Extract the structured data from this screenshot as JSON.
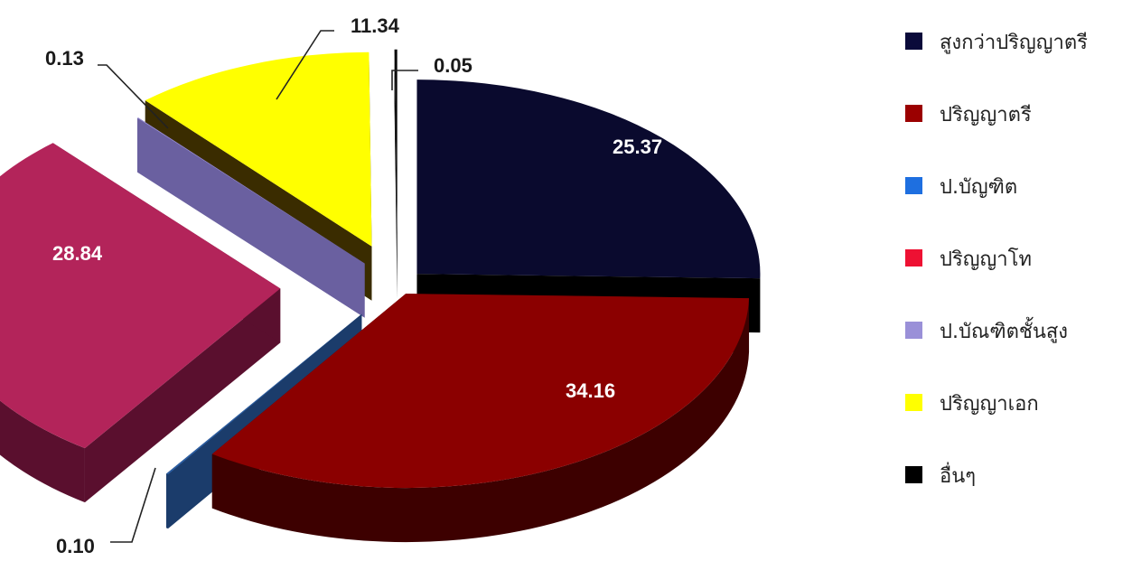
{
  "chart_data": {
    "type": "pie",
    "title": "",
    "legend_position": "right",
    "slices": [
      {
        "name": "สูงกว่าปริญญาตรี",
        "value": 25.37,
        "label": "25.37",
        "color": "#0a0a2e",
        "side": "#000000"
      },
      {
        "name": "ปริญญาตรี",
        "value": 34.16,
        "label": "34.16",
        "color": "#8b0000",
        "side": "#3d0000"
      },
      {
        "name": "ป.บัณฑิต",
        "value": 0.1,
        "label": "0.10",
        "color": "#2d5fa3",
        "side": "#1b3c6b"
      },
      {
        "name": "ปริญญาโท",
        "value": 28.84,
        "label": "28.84",
        "color": "#b3245a",
        "side": "#5a0f2e"
      },
      {
        "name": "ป.บัณฑิตชั้นสูง",
        "value": 0.05,
        "label": "0.05",
        "color": "#9a8fd6",
        "side": "#6a60a0"
      },
      {
        "name": "ปริญญาเอก",
        "value": 11.34,
        "label": "11.34",
        "color": "#ffff00",
        "side": "#3a2c00"
      },
      {
        "name": "อื่นๆ",
        "value": 0.13,
        "label": "0.13",
        "color": "#0a0a0a",
        "side": "#000000"
      }
    ],
    "legend": [
      {
        "label": "สูงกว่าปริญญาตรี",
        "color": "#0a0a3a"
      },
      {
        "label": "ปริญญาตรี",
        "color": "#9b0000"
      },
      {
        "label": "ป.บัญฑิต",
        "color": "#1e6fe0"
      },
      {
        "label": "ปริญญาโท",
        "color": "#ee1133"
      },
      {
        "label": "ป.บัณฑิตชั้นสูง",
        "color": "#9a90d8"
      },
      {
        "label": "ปริญญาเอก",
        "color": "#ffff00"
      },
      {
        "label": "อื่นๆ",
        "color": "#000000"
      }
    ]
  }
}
